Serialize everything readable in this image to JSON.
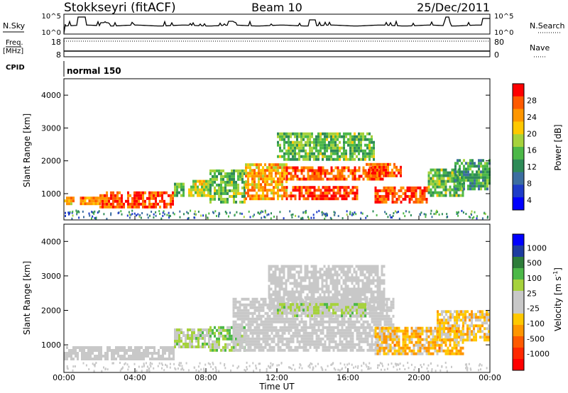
{
  "header": {
    "station": "Stokkseyri (fitACF)",
    "beam": "Beam 10",
    "date": "25/Dec/2011"
  },
  "top_panels": {
    "nsky_label": "N.Sky",
    "nsky_ticks": [
      "10^5",
      "10^0"
    ],
    "nsearch_label": "N.Search",
    "nsearch_ticks": [
      "10^5",
      "10^0"
    ],
    "freq_label": "Freq.",
    "freq_unit": "[MHz]",
    "freq_ticks": [
      "18",
      "8"
    ],
    "nave_label": "Nave",
    "nave_ticks": [
      "80",
      "0"
    ],
    "cpid_label": "CPID",
    "cpid_value": "normal 150"
  },
  "x_axis": {
    "label": "Time UT",
    "ticks": [
      "00:00",
      "04:00",
      "08:00",
      "12:00",
      "16:00",
      "20:00",
      "00:00"
    ]
  },
  "power_colorbar": {
    "label": "Power [dB]",
    "ticks": [
      "28",
      "24",
      "20",
      "16",
      "12",
      "8",
      "4"
    ],
    "colors": [
      "#ff0000",
      "#ff5a00",
      "#ff9600",
      "#ffc800",
      "#a6d23c",
      "#4cb848",
      "#2e8b57",
      "#3c6ea0",
      "#1e3cc8",
      "#0000ff"
    ]
  },
  "velocity_colorbar": {
    "label": "Velocity [m s",
    "label_sup": "-1",
    "label_end": "]",
    "ticks": [
      "1000",
      "500",
      "100",
      "25",
      "-25",
      "-100",
      "-500",
      "-1000"
    ],
    "colors": [
      "#0000ff",
      "#1e3ca0",
      "#2e7d3a",
      "#4cb848",
      "#a6d23c",
      "#c8c8c8",
      "#c8c8c8",
      "#ffc800",
      "#ff9600",
      "#ff5a00",
      "#ff2800",
      "#ff0000"
    ]
  },
  "chart_data": [
    {
      "type": "heatmap",
      "title": "Power",
      "xlabel": "Time UT",
      "ylabel": "Slant Range [km]",
      "x_ticks": [
        "00:00",
        "04:00",
        "08:00",
        "12:00",
        "16:00",
        "20:00",
        "00:00"
      ],
      "y_ticks": [
        1000,
        2000,
        3000,
        4000
      ],
      "xlim_hours": [
        0,
        24
      ],
      "ylim_km": [
        200,
        4500
      ],
      "zlabel": "Power [dB]",
      "zlim": [
        0,
        30
      ],
      "regions": [
        {
          "t_start": 0.0,
          "t_end": 0.6,
          "r_start": 650,
          "r_end": 900,
          "level": 22
        },
        {
          "t_start": 0.9,
          "t_end": 2.0,
          "r_start": 650,
          "r_end": 900,
          "level": 24
        },
        {
          "t_start": 2.0,
          "t_end": 6.2,
          "r_start": 550,
          "r_end": 1000,
          "level": 27
        },
        {
          "t_start": 6.2,
          "t_end": 6.8,
          "r_start": 900,
          "r_end": 1300,
          "level": 12
        },
        {
          "t_start": 7.0,
          "t_end": 8.2,
          "r_start": 900,
          "r_end": 1400,
          "level": 18
        },
        {
          "t_start": 8.2,
          "t_end": 10.2,
          "r_start": 700,
          "r_end": 1700,
          "level": 14
        },
        {
          "t_start": 10.2,
          "t_end": 12.5,
          "r_start": 800,
          "r_end": 1900,
          "level": 22
        },
        {
          "t_start": 12.5,
          "t_end": 16.5,
          "r_start": 800,
          "r_end": 1200,
          "level": 28
        },
        {
          "t_start": 12.5,
          "t_end": 18.0,
          "r_start": 1400,
          "r_end": 1800,
          "level": 26
        },
        {
          "t_start": 12.0,
          "t_end": 17.5,
          "r_start": 2000,
          "r_end": 2800,
          "level": 14
        },
        {
          "t_start": 17.0,
          "t_end": 19.0,
          "r_start": 1500,
          "r_end": 1900,
          "level": 27
        },
        {
          "t_start": 17.5,
          "t_end": 20.5,
          "r_start": 700,
          "r_end": 1200,
          "level": 27
        },
        {
          "t_start": 20.5,
          "t_end": 22.5,
          "r_start": 900,
          "r_end": 1700,
          "level": 14
        },
        {
          "t_start": 22.0,
          "t_end": 24.0,
          "r_start": 1100,
          "r_end": 2000,
          "level": 11
        }
      ]
    },
    {
      "type": "heatmap",
      "title": "Velocity",
      "xlabel": "Time UT",
      "ylabel": "Slant Range [km]",
      "x_ticks": [
        "00:00",
        "04:00",
        "08:00",
        "12:00",
        "16:00",
        "20:00",
        "00:00"
      ],
      "y_ticks": [
        1000,
        2000,
        3000,
        4000
      ],
      "xlim_hours": [
        0,
        24
      ],
      "ylim_km": [
        200,
        4500
      ],
      "zlabel": "Velocity [m s-1]",
      "zlim": [
        -1000,
        1000
      ],
      "regions": [
        {
          "t_start": 0.0,
          "t_end": 6.2,
          "r_start": 550,
          "r_end": 950,
          "velocity": 0
        },
        {
          "t_start": 6.2,
          "t_end": 8.2,
          "r_start": 900,
          "r_end": 1400,
          "velocity": 150
        },
        {
          "t_start": 8.2,
          "t_end": 10.2,
          "r_start": 800,
          "r_end": 1500,
          "velocity": 300
        },
        {
          "t_start": 9.5,
          "t_end": 18.5,
          "r_start": 800,
          "r_end": 2300,
          "velocity": 0
        },
        {
          "t_start": 11.5,
          "t_end": 18.0,
          "r_start": 2000,
          "r_end": 3300,
          "velocity": 0
        },
        {
          "t_start": 12.0,
          "t_end": 17.0,
          "r_start": 1800,
          "r_end": 2200,
          "velocity": 150
        },
        {
          "t_start": 17.5,
          "t_end": 22.5,
          "r_start": 700,
          "r_end": 1500,
          "velocity": -300
        },
        {
          "t_start": 21.0,
          "t_end": 24.0,
          "r_start": 1100,
          "r_end": 2000,
          "velocity": -200
        }
      ]
    }
  ]
}
